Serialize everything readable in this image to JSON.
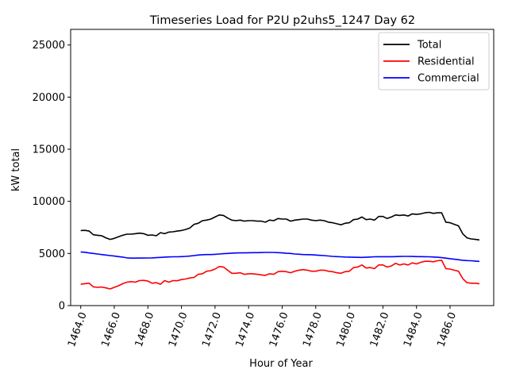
{
  "chart_data": {
    "type": "line",
    "title": "Timeseries Load for P2U p2uhs5_1247  Day 62",
    "xlabel": "Hour of Year",
    "ylabel": "kW total",
    "xlim": [
      1463.4,
      1488.6
    ],
    "ylim": [
      0,
      26500
    ],
    "xticks": [
      1464,
      1466,
      1468,
      1470,
      1472,
      1474,
      1476,
      1478,
      1480,
      1482,
      1484,
      1486
    ],
    "xtick_labels": [
      "1464.0",
      "1466.0",
      "1468.0",
      "1470.0",
      "1472.0",
      "1474.0",
      "1476.0",
      "1478.0",
      "1480.0",
      "1482.0",
      "1484.0",
      "1486.0"
    ],
    "yticks": [
      0,
      5000,
      10000,
      15000,
      20000,
      25000
    ],
    "ytick_labels": [
      "0",
      "5000",
      "10000",
      "15000",
      "20000",
      "25000"
    ],
    "legend_position": "upper-right",
    "x": [
      1464.0,
      1464.25,
      1464.5,
      1464.75,
      1465.0,
      1465.25,
      1465.5,
      1465.75,
      1466.0,
      1466.25,
      1466.5,
      1466.75,
      1467.0,
      1467.25,
      1467.5,
      1467.75,
      1468.0,
      1468.25,
      1468.5,
      1468.75,
      1469.0,
      1469.25,
      1469.5,
      1469.75,
      1470.0,
      1470.25,
      1470.5,
      1470.75,
      1471.0,
      1471.25,
      1471.5,
      1471.75,
      1472.0,
      1472.25,
      1472.5,
      1472.75,
      1473.0,
      1473.25,
      1473.5,
      1473.75,
      1474.0,
      1474.25,
      1474.5,
      1474.75,
      1475.0,
      1475.25,
      1475.5,
      1475.75,
      1476.0,
      1476.25,
      1476.5,
      1476.75,
      1477.0,
      1477.25,
      1477.5,
      1477.75,
      1478.0,
      1478.25,
      1478.5,
      1478.75,
      1479.0,
      1479.25,
      1479.5,
      1479.75,
      1480.0,
      1480.25,
      1480.5,
      1480.75,
      1481.0,
      1481.25,
      1481.5,
      1481.75,
      1482.0,
      1482.25,
      1482.5,
      1482.75,
      1483.0,
      1483.25,
      1483.5,
      1483.75,
      1484.0,
      1484.25,
      1484.5,
      1484.75,
      1485.0,
      1485.25,
      1485.5,
      1485.75,
      1486.0,
      1486.25,
      1486.5,
      1486.75,
      1487.0,
      1487.25,
      1487.5,
      1487.75
    ],
    "series": [
      {
        "name": "Total",
        "color": "#000000",
        "values": [
          7200,
          7220,
          7150,
          6800,
          6750,
          6700,
          6500,
          6350,
          6450,
          6600,
          6750,
          6850,
          6850,
          6900,
          6950,
          6900,
          6750,
          6780,
          6700,
          7000,
          6900,
          7050,
          7080,
          7150,
          7200,
          7300,
          7450,
          7800,
          7900,
          8150,
          8200,
          8300,
          8500,
          8700,
          8650,
          8400,
          8200,
          8150,
          8200,
          8100,
          8150,
          8150,
          8100,
          8100,
          8000,
          8200,
          8150,
          8350,
          8300,
          8300,
          8100,
          8200,
          8250,
          8300,
          8300,
          8200,
          8150,
          8200,
          8150,
          8000,
          7950,
          7850,
          7750,
          7900,
          7950,
          8250,
          8300,
          8500,
          8250,
          8300,
          8200,
          8550,
          8550,
          8350,
          8500,
          8700,
          8650,
          8700,
          8600,
          8800,
          8750,
          8800,
          8900,
          8950,
          8850,
          8900,
          8900,
          8000,
          7950,
          7800,
          7650,
          6900,
          6500,
          6400,
          6350,
          6300
        ]
      },
      {
        "name": "Residential",
        "color": "#ff0000",
        "values": [
          2050,
          2100,
          2150,
          1800,
          1750,
          1780,
          1700,
          1600,
          1750,
          1900,
          2100,
          2250,
          2300,
          2250,
          2400,
          2420,
          2350,
          2150,
          2200,
          2050,
          2400,
          2250,
          2400,
          2380,
          2500,
          2550,
          2650,
          2700,
          3000,
          3050,
          3300,
          3350,
          3500,
          3750,
          3700,
          3400,
          3100,
          3100,
          3150,
          3000,
          3050,
          3050,
          3000,
          2950,
          2900,
          3050,
          3000,
          3250,
          3300,
          3250,
          3150,
          3300,
          3400,
          3450,
          3400,
          3300,
          3300,
          3400,
          3400,
          3300,
          3250,
          3150,
          3100,
          3250,
          3300,
          3650,
          3700,
          3900,
          3600,
          3650,
          3550,
          3900,
          3900,
          3700,
          3800,
          4050,
          3900,
          4000,
          3900,
          4100,
          4000,
          4150,
          4250,
          4250,
          4200,
          4300,
          4350,
          3550,
          3500,
          3400,
          3300,
          2600,
          2200,
          2150,
          2150,
          2100
        ]
      },
      {
        "name": "Commercial",
        "color": "#0000ff",
        "values": [
          5150,
          5120,
          5050,
          5000,
          4950,
          4900,
          4850,
          4800,
          4750,
          4700,
          4650,
          4580,
          4550,
          4550,
          4560,
          4560,
          4570,
          4580,
          4600,
          4620,
          4650,
          4670,
          4680,
          4680,
          4700,
          4720,
          4750,
          4800,
          4850,
          4880,
          4900,
          4900,
          4920,
          4950,
          4980,
          5000,
          5030,
          5050,
          5060,
          5060,
          5070,
          5080,
          5080,
          5090,
          5100,
          5100,
          5100,
          5080,
          5060,
          5020,
          5000,
          4950,
          4930,
          4900,
          4890,
          4880,
          4850,
          4820,
          4800,
          4760,
          4720,
          4700,
          4680,
          4660,
          4650,
          4640,
          4630,
          4620,
          4640,
          4660,
          4680,
          4690,
          4690,
          4690,
          4690,
          4700,
          4710,
          4720,
          4720,
          4710,
          4700,
          4700,
          4690,
          4680,
          4660,
          4640,
          4600,
          4550,
          4500,
          4450,
          4400,
          4350,
          4320,
          4300,
          4270,
          4240
        ]
      }
    ]
  }
}
